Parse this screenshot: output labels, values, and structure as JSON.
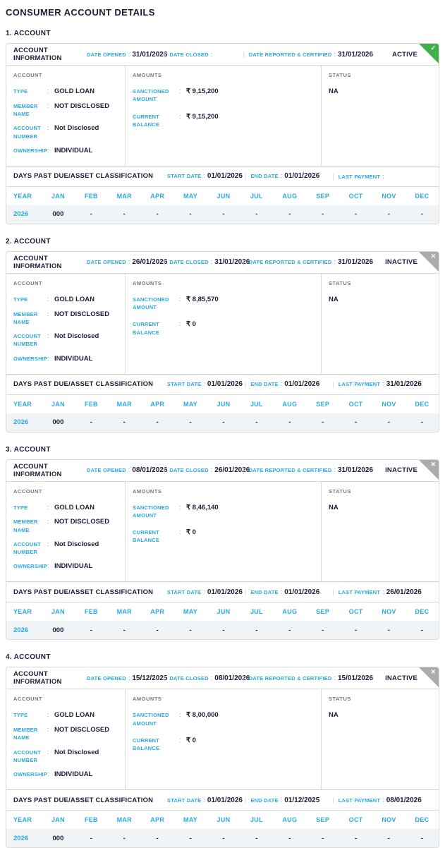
{
  "page_title": "CONSUMER ACCOUNT DETAILS",
  "colors": {
    "accent_cyan": "#29a9e0",
    "dark": "#1d1d3b",
    "active_green": "#43af4c",
    "inactive_gray": "#a9abae",
    "row_bg": "#f0f4f7",
    "border": "#d9d9d9",
    "label_gray": "#77787b",
    "pipe": "#c7d3da"
  },
  "icons": {
    "active_check": "✓",
    "inactive_close": "✕"
  },
  "labels": {
    "account_information": "ACCOUNT INFORMATION",
    "date_opened": "DATE OPENED",
    "date_closed": "DATE CLOSED",
    "date_reported": "DATE REPORTED & CERTIFIED",
    "account": "ACCOUNT",
    "amounts": "AMOUNTS",
    "status": "STATUS",
    "type": "TYPE",
    "member_name": "MEMBER NAME",
    "account_number": "ACCOUNT NUMBER",
    "ownership": "OWNERSHIP",
    "sanctioned_amount": "SANCTIONED AMOUNT",
    "current_balance": "CURRENT BALANCE",
    "dpd_title": "DAYS PAST DUE/ASSET CLASSIFICATION",
    "start_date": "START DATE",
    "end_date": "END DATE",
    "last_payment": "LAST PAYMENT",
    "colon": ":",
    "pipe": "|"
  },
  "dpd_columns": [
    "YEAR",
    "JAN",
    "FEB",
    "MAR",
    "APR",
    "MAY",
    "JUN",
    "JUL",
    "AUG",
    "SEP",
    "OCT",
    "NOV",
    "DEC"
  ],
  "accounts": [
    {
      "index_label": "1. ACCOUNT",
      "status_badge": "ACTIVE",
      "date_opened": "31/01/2026",
      "date_closed": "",
      "date_reported": "31/01/2026",
      "type": "GOLD LOAN",
      "member_name": "NOT DISCLOSED",
      "account_number": "Not Disclosed",
      "ownership": "INDIVIDUAL",
      "sanctioned_amount": "₹ 9,15,200",
      "current_balance": "₹ 9,15,200",
      "status": "NA",
      "start_date": "01/01/2026",
      "end_date": "01/01/2026",
      "last_payment": "",
      "dpd_row": [
        "2026",
        "000",
        "-",
        "-",
        "-",
        "-",
        "-",
        "-",
        "-",
        "-",
        "-",
        "-",
        "-"
      ]
    },
    {
      "index_label": "2. ACCOUNT",
      "status_badge": "INACTIVE",
      "date_opened": "26/01/2026",
      "date_closed": "31/01/2026",
      "date_reported": "31/01/2026",
      "type": "GOLD LOAN",
      "member_name": "NOT DISCLOSED",
      "account_number": "Not Disclosed",
      "ownership": "INDIVIDUAL",
      "sanctioned_amount": "₹ 8,85,570",
      "current_balance": "₹ 0",
      "status": "NA",
      "start_date": "01/01/2026",
      "end_date": "01/01/2026",
      "last_payment": "31/01/2026",
      "dpd_row": [
        "2026",
        "000",
        "-",
        "-",
        "-",
        "-",
        "-",
        "-",
        "-",
        "-",
        "-",
        "-",
        "-"
      ]
    },
    {
      "index_label": "3. ACCOUNT",
      "status_badge": "INACTIVE",
      "date_opened": "08/01/2026",
      "date_closed": "26/01/2026",
      "date_reported": "31/01/2026",
      "type": "GOLD LOAN",
      "member_name": "NOT DISCLOSED",
      "account_number": "Not Disclosed",
      "ownership": "INDIVIDUAL",
      "sanctioned_amount": "₹ 8,46,140",
      "current_balance": "₹ 0",
      "status": "NA",
      "start_date": "01/01/2026",
      "end_date": "01/01/2026",
      "last_payment": "26/01/2026",
      "dpd_row": [
        "2026",
        "000",
        "-",
        "-",
        "-",
        "-",
        "-",
        "-",
        "-",
        "-",
        "-",
        "-",
        "-"
      ]
    },
    {
      "index_label": "4. ACCOUNT",
      "status_badge": "INACTIVE",
      "date_opened": "15/12/2025",
      "date_closed": "08/01/2026",
      "date_reported": "15/01/2026",
      "type": "GOLD LOAN",
      "member_name": "NOT DISCLOSED",
      "account_number": "Not Disclosed",
      "ownership": "INDIVIDUAL",
      "sanctioned_amount": "₹ 8,00,000",
      "current_balance": "₹ 0",
      "status": "NA",
      "start_date": "01/01/2026",
      "end_date": "01/12/2025",
      "last_payment": "08/01/2026",
      "dpd_row": [
        "2026",
        "000",
        "-",
        "-",
        "-",
        "-",
        "-",
        "-",
        "-",
        "-",
        "-",
        "-",
        "-"
      ]
    }
  ]
}
